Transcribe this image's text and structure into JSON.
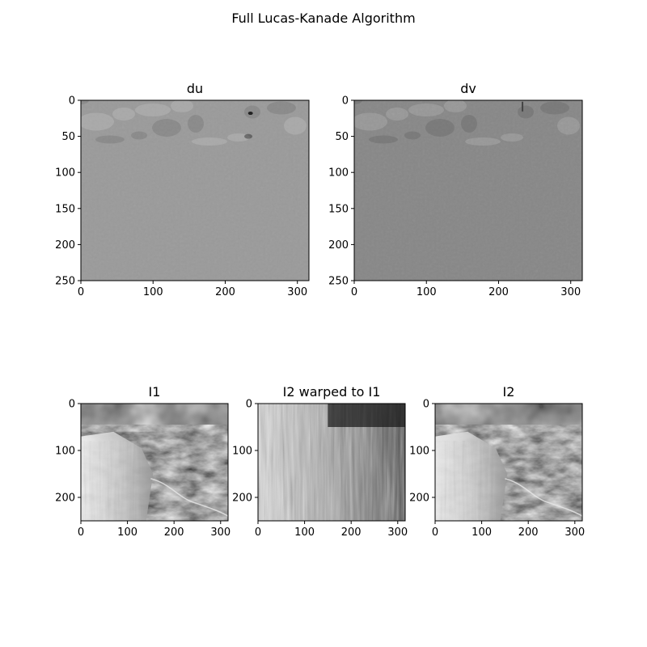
{
  "figure": {
    "title": "Full Lucas-Kanade Algorithm"
  },
  "chart_data": [
    {
      "type": "heatmap",
      "title": "du",
      "colormap": "gray",
      "image_description": "uniform mid-gray flow field with small darker/lighter patches near the top rows",
      "xlim": [
        0,
        316
      ],
      "ylim": [
        250,
        0
      ],
      "xticks": [
        0,
        100,
        200,
        300
      ],
      "yticks": [
        0,
        50,
        100,
        150,
        200,
        250
      ],
      "grid": false,
      "base_gray": "#9a9a9a"
    },
    {
      "type": "heatmap",
      "title": "dv",
      "colormap": "gray",
      "image_description": "uniform medium-gray flow field, slightly darker than du, faint texture near top",
      "xlim": [
        0,
        316
      ],
      "ylim": [
        250,
        0
      ],
      "xticks": [
        0,
        100,
        200,
        300
      ],
      "yticks": [
        0,
        50,
        100,
        150,
        200,
        250
      ],
      "grid": false,
      "base_gray": "#878787"
    },
    {
      "type": "heatmap",
      "title": "I1",
      "colormap": "gray",
      "image_description": "grayscale aerial terrain image with cloudy sky at top",
      "xlim": [
        0,
        316
      ],
      "ylim": [
        250,
        0
      ],
      "xticks": [
        0,
        100,
        200,
        300
      ],
      "yticks": [
        0,
        100,
        200
      ],
      "grid": false
    },
    {
      "type": "heatmap",
      "title": "I2 warped to I1",
      "colormap": "gray",
      "image_description": "noisy, vertically streaked warped grayscale image",
      "xlim": [
        0,
        316
      ],
      "ylim": [
        250,
        0
      ],
      "xticks": [
        0,
        100,
        200,
        300
      ],
      "yticks": [
        0,
        100,
        200
      ],
      "grid": false
    },
    {
      "type": "heatmap",
      "title": "I2",
      "colormap": "gray",
      "image_description": "grayscale aerial terrain image with cloudy sky at top",
      "xlim": [
        0,
        316
      ],
      "ylim": [
        250,
        0
      ],
      "xticks": [
        0,
        100,
        200,
        300
      ],
      "yticks": [
        0,
        100,
        200
      ],
      "grid": false
    }
  ]
}
